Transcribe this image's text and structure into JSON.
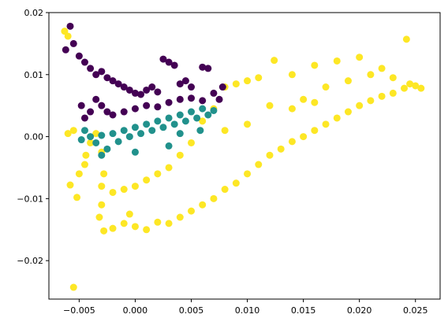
{
  "chart_data": {
    "type": "scatter",
    "title": "",
    "xlabel": "",
    "ylabel": "",
    "xlim": [
      -0.0077,
      0.0272
    ],
    "ylim": [
      -0.0262,
      0.02
    ],
    "x_ticks": [
      -0.005,
      0.0,
      0.005,
      0.01,
      0.015,
      0.02,
      0.025
    ],
    "x_tick_labels": [
      "−0.005",
      "0.000",
      "0.005",
      "0.010",
      "0.015",
      "0.020",
      "0.025"
    ],
    "y_ticks": [
      -0.02,
      -0.01,
      0.0,
      0.01,
      0.02
    ],
    "y_tick_labels": [
      "−0.02",
      "−0.01",
      "0.00",
      "0.01",
      "0.02"
    ],
    "grid": false,
    "legend": "none",
    "colors": {
      "cluster_0": "#440154",
      "cluster_1": "#21918c",
      "cluster_2": "#fde725"
    },
    "series": [
      {
        "color_key": "cluster_2",
        "points": [
          [
            -0.0055,
            -0.0243
          ],
          [
            -0.0052,
            -0.0098
          ],
          [
            -0.0058,
            -0.0078
          ],
          [
            -0.005,
            -0.006
          ],
          [
            -0.0044,
            -0.003
          ],
          [
            -0.004,
            -0.001
          ],
          [
            -0.0035,
            0.0005
          ],
          [
            -0.003,
            -0.0025
          ],
          [
            -0.0028,
            -0.006
          ],
          [
            -0.003,
            -0.011
          ],
          [
            -0.0032,
            -0.013
          ],
          [
            -0.0028,
            -0.0152
          ],
          [
            -0.002,
            -0.0148
          ],
          [
            -0.001,
            -0.014
          ],
          [
            -0.0005,
            -0.0125
          ],
          [
            0.0,
            -0.0145
          ],
          [
            0.001,
            -0.015
          ],
          [
            0.002,
            -0.0138
          ],
          [
            0.003,
            -0.014
          ],
          [
            0.004,
            -0.013
          ],
          [
            0.005,
            -0.012
          ],
          [
            0.006,
            -0.011
          ],
          [
            0.007,
            -0.01
          ],
          [
            0.008,
            -0.0085
          ],
          [
            0.009,
            -0.0075
          ],
          [
            0.01,
            -0.006
          ],
          [
            0.011,
            -0.0045
          ],
          [
            0.012,
            -0.003
          ],
          [
            0.013,
            -0.002
          ],
          [
            0.014,
            -0.0008
          ],
          [
            0.015,
            0.0
          ],
          [
            0.016,
            0.001
          ],
          [
            0.017,
            0.002
          ],
          [
            0.018,
            0.003
          ],
          [
            0.019,
            0.004
          ],
          [
            0.02,
            0.005
          ],
          [
            0.021,
            0.0058
          ],
          [
            0.022,
            0.0065
          ],
          [
            0.023,
            0.007
          ],
          [
            0.024,
            0.0078
          ],
          [
            0.025,
            0.0082
          ],
          [
            0.0255,
            0.0078
          ],
          [
            0.0242,
            0.0157
          ],
          [
            0.02,
            0.0128
          ],
          [
            0.018,
            0.0122
          ],
          [
            0.016,
            0.0115
          ],
          [
            0.014,
            0.01
          ],
          [
            0.0124,
            0.0123
          ],
          [
            0.011,
            0.0095
          ],
          [
            0.01,
            0.009
          ],
          [
            0.009,
            0.0085
          ],
          [
            0.008,
            0.008
          ],
          [
            0.007,
            0.0045
          ],
          [
            0.006,
            0.0025
          ],
          [
            0.005,
            -0.001
          ],
          [
            0.004,
            -0.003
          ],
          [
            0.003,
            -0.005
          ],
          [
            0.002,
            -0.006
          ],
          [
            0.001,
            -0.007
          ],
          [
            0.0,
            -0.008
          ],
          [
            -0.001,
            -0.0085
          ],
          [
            -0.002,
            -0.009
          ],
          [
            -0.003,
            -0.008
          ],
          [
            -0.0045,
            -0.0045
          ],
          [
            -0.006,
            0.0005
          ],
          [
            -0.0055,
            0.001
          ],
          [
            -0.006,
            0.0162
          ],
          [
            -0.0063,
            0.017
          ],
          [
            0.015,
            0.006
          ],
          [
            0.017,
            0.008
          ],
          [
            0.019,
            0.009
          ],
          [
            0.021,
            0.01
          ],
          [
            0.022,
            0.011
          ],
          [
            0.023,
            0.0095
          ],
          [
            0.0245,
            0.0085
          ],
          [
            0.01,
            0.002
          ],
          [
            0.008,
            0.001
          ],
          [
            0.012,
            0.005
          ],
          [
            0.014,
            0.0045
          ],
          [
            0.016,
            0.0055
          ]
        ]
      },
      {
        "color_key": "cluster_1",
        "points": [
          [
            -0.0048,
            -0.0005
          ],
          [
            -0.004,
            0.0
          ],
          [
            -0.0035,
            -0.001
          ],
          [
            -0.003,
            0.0002
          ],
          [
            -0.0025,
            -0.002
          ],
          [
            -0.002,
            0.0005
          ],
          [
            -0.0015,
            -0.0008
          ],
          [
            -0.001,
            0.001
          ],
          [
            -0.0005,
            0.0
          ],
          [
            0.0,
            0.0015
          ],
          [
            0.0005,
            0.0005
          ],
          [
            0.001,
            0.002
          ],
          [
            0.0015,
            0.001
          ],
          [
            0.002,
            0.0025
          ],
          [
            0.0025,
            0.0015
          ],
          [
            0.003,
            0.003
          ],
          [
            0.0035,
            0.002
          ],
          [
            0.004,
            0.0035
          ],
          [
            0.0045,
            0.0025
          ],
          [
            0.005,
            0.004
          ],
          [
            0.0055,
            0.003
          ],
          [
            0.006,
            0.0045
          ],
          [
            0.0065,
            0.0035
          ],
          [
            0.007,
            0.0042
          ],
          [
            -0.003,
            -0.003
          ],
          [
            0.0,
            -0.0025
          ],
          [
            0.003,
            -0.0015
          ],
          [
            0.0058,
            0.001
          ],
          [
            -0.0045,
            0.001
          ],
          [
            0.004,
            0.0005
          ]
        ]
      },
      {
        "color_key": "cluster_0",
        "points": [
          [
            -0.0058,
            0.0178
          ],
          [
            -0.0062,
            0.014
          ],
          [
            -0.0055,
            0.015
          ],
          [
            -0.005,
            0.013
          ],
          [
            -0.0045,
            0.012
          ],
          [
            -0.004,
            0.011
          ],
          [
            -0.0035,
            0.01
          ],
          [
            -0.003,
            0.0105
          ],
          [
            -0.0025,
            0.0095
          ],
          [
            -0.002,
            0.009
          ],
          [
            -0.0015,
            0.0085
          ],
          [
            -0.001,
            0.008
          ],
          [
            -0.0005,
            0.0075
          ],
          [
            0.0,
            0.007
          ],
          [
            0.0005,
            0.0068
          ],
          [
            0.001,
            0.0075
          ],
          [
            0.0015,
            0.008
          ],
          [
            0.002,
            0.0072
          ],
          [
            0.0025,
            0.0125
          ],
          [
            0.003,
            0.012
          ],
          [
            0.0035,
            0.0115
          ],
          [
            0.004,
            0.0085
          ],
          [
            0.0045,
            0.009
          ],
          [
            0.005,
            0.008
          ],
          [
            0.006,
            0.0112
          ],
          [
            0.0065,
            0.011
          ],
          [
            0.007,
            0.007
          ],
          [
            0.0075,
            0.006
          ],
          [
            0.0078,
            0.008
          ],
          [
            -0.0048,
            0.005
          ],
          [
            -0.0045,
            0.003
          ],
          [
            -0.004,
            0.004
          ],
          [
            -0.0035,
            0.006
          ],
          [
            -0.003,
            0.005
          ],
          [
            -0.0025,
            0.004
          ],
          [
            -0.002,
            0.0035
          ],
          [
            -0.001,
            0.004
          ],
          [
            0.0,
            0.0045
          ],
          [
            0.001,
            0.005
          ],
          [
            0.002,
            0.0048
          ],
          [
            0.003,
            0.0055
          ],
          [
            0.004,
            0.006
          ],
          [
            0.005,
            0.0062
          ],
          [
            0.006,
            0.0058
          ]
        ]
      }
    ]
  }
}
